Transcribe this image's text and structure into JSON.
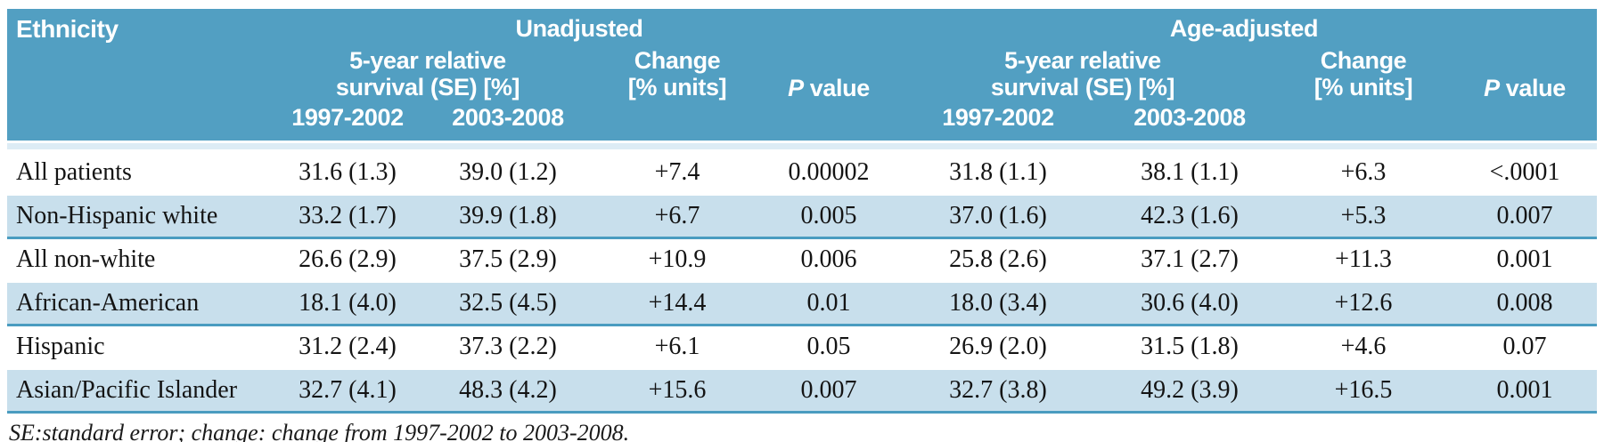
{
  "colors": {
    "header_bg": "#529fc2",
    "row_alt_bg": "#c8dfec",
    "divider_line": "#4a9cc0",
    "header_strip": "#ddecf5",
    "header_text": "#ffffff",
    "body_text": "#141414"
  },
  "table": {
    "ethnicity_header": "Ethnicity",
    "groups": [
      {
        "label": "Unadjusted"
      },
      {
        "label": "Age-adjusted"
      }
    ],
    "subheaders": {
      "survival_line1": "5-year relative",
      "survival_line2": "survival (SE) [%]",
      "change_line1": "Change",
      "change_line2": "[% units]",
      "p_label": "P",
      "value_label": "value",
      "period1": "1997-2002",
      "period2": "2003-2008"
    },
    "rows": [
      {
        "ethnicity": "All patients",
        "cells": [
          "31.6 (1.3)",
          "39.0 (1.2)",
          "+7.4",
          "0.00002",
          "31.8 (1.1)",
          "38.1 (1.1)",
          "+6.3",
          "<.0001"
        ]
      },
      {
        "ethnicity": "Non-Hispanic white",
        "cells": [
          "33.2 (1.7)",
          "39.9 (1.8)",
          "+6.7",
          "0.005",
          "37.0 (1.6)",
          "42.3 (1.6)",
          "+5.3",
          "0.007"
        ]
      },
      {
        "ethnicity": "All non-white",
        "cells": [
          "26.6 (2.9)",
          "37.5 (2.9)",
          "+10.9",
          "0.006",
          "25.8 (2.6)",
          "37.1 (2.7)",
          "+11.3",
          "0.001"
        ]
      },
      {
        "ethnicity": "African-American",
        "cells": [
          "18.1 (4.0)",
          "32.5 (4.5)",
          "+14.4",
          "0.01",
          "18.0 (3.4)",
          "30.6 (4.0)",
          "+12.6",
          "0.008"
        ]
      },
      {
        "ethnicity": "Hispanic",
        "cells": [
          "31.2 (2.4)",
          "37.3 (2.2)",
          "+6.1",
          "0.05",
          "26.9 (2.0)",
          "31.5 (1.8)",
          "+4.6",
          "0.07"
        ]
      },
      {
        "ethnicity": "Asian/Pacific Islander",
        "cells": [
          "32.7 (4.1)",
          "48.3 (4.2)",
          "+15.6",
          "0.007",
          "32.7 (3.8)",
          "49.2 (3.9)",
          "+16.5",
          "0.001"
        ]
      }
    ],
    "footnote": "SE:standard error; change: change from 1997-2002 to 2003-2008."
  },
  "chart_data": {
    "type": "table",
    "title": "5-year relative survival by ethnicity, unadjusted and age-adjusted",
    "column_groups": [
      "Unadjusted",
      "Age-adjusted"
    ],
    "columns": [
      "Ethnicity",
      "Unadjusted 5-year relative survival (SE) [%] 1997-2002",
      "Unadjusted 5-year relative survival (SE) [%] 2003-2008",
      "Unadjusted Change [% units]",
      "Unadjusted P value",
      "Age-adjusted 5-year relative survival (SE) [%] 1997-2002",
      "Age-adjusted 5-year relative survival (SE) [%] 2003-2008",
      "Age-adjusted Change [% units]",
      "Age-adjusted P value"
    ],
    "rows": [
      [
        "All patients",
        "31.6 (1.3)",
        "39.0 (1.2)",
        "+7.4",
        "0.00002",
        "31.8 (1.1)",
        "38.1 (1.1)",
        "+6.3",
        "<.0001"
      ],
      [
        "Non-Hispanic white",
        "33.2 (1.7)",
        "39.9 (1.8)",
        "+6.7",
        "0.005",
        "37.0 (1.6)",
        "42.3 (1.6)",
        "+5.3",
        "0.007"
      ],
      [
        "All non-white",
        "26.6 (2.9)",
        "37.5 (2.9)",
        "+10.9",
        "0.006",
        "25.8 (2.6)",
        "37.1 (2.7)",
        "+11.3",
        "0.001"
      ],
      [
        "African-American",
        "18.1 (4.0)",
        "32.5 (4.5)",
        "+14.4",
        "0.01",
        "18.0 (3.4)",
        "30.6 (4.0)",
        "+12.6",
        "0.008"
      ],
      [
        "Hispanic",
        "31.2 (2.4)",
        "37.3 (2.2)",
        "+6.1",
        "0.05",
        "26.9 (2.0)",
        "31.5 (1.8)",
        "+4.6",
        "0.07"
      ],
      [
        "Asian/Pacific Islander",
        "32.7 (4.1)",
        "48.3 (4.2)",
        "+15.6",
        "0.007",
        "32.7 (3.8)",
        "49.2 (3.9)",
        "+16.5",
        "0.001"
      ]
    ],
    "footnote": "SE:standard error; change: change from 1997-2002 to 2003-2008."
  }
}
